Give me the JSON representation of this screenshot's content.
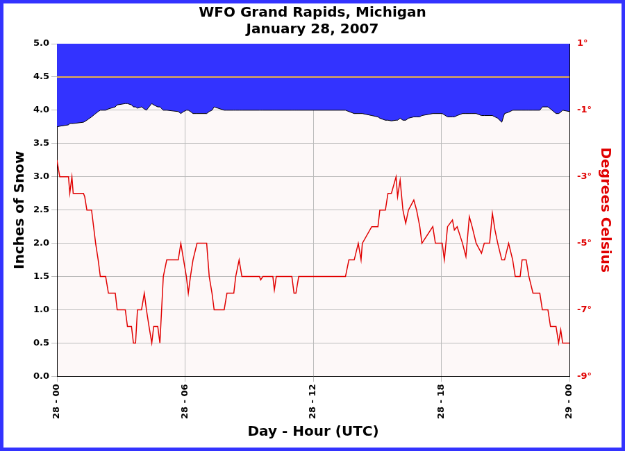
{
  "chart_data": {
    "type": "line",
    "title": "WFO Grand Rapids, Michigan",
    "subtitle": "January 28, 2007",
    "x_label": "Day - Hour (UTC)",
    "y_label": "Inches of Snow",
    "y2_label": "Degrees Celsius",
    "grid": true,
    "xlim": [
      0,
      24
    ],
    "xticks": [
      {
        "value": 0,
        "label": "28 - 00"
      },
      {
        "value": 6,
        "label": "28 - 06"
      },
      {
        "value": 12,
        "label": "28 - 12"
      },
      {
        "value": 18,
        "label": "28 - 18"
      },
      {
        "value": 24,
        "label": "29 - 00"
      }
    ],
    "ylim": [
      0,
      5
    ],
    "yticks": [
      {
        "value": 0,
        "label": "0.0"
      },
      {
        "value": 0.5,
        "label": "0.5"
      },
      {
        "value": 1,
        "label": "1.0"
      },
      {
        "value": 1.5,
        "label": "1.5"
      },
      {
        "value": 2,
        "label": "2.0"
      },
      {
        "value": 2.5,
        "label": "2.5"
      },
      {
        "value": 3,
        "label": "3.0"
      },
      {
        "value": 3.5,
        "label": "3.5"
      },
      {
        "value": 4,
        "label": "4.0"
      },
      {
        "value": 4.5,
        "label": "4.5"
      },
      {
        "value": 5,
        "label": "5.0"
      }
    ],
    "y2lim": [
      -9,
      1
    ],
    "y2ticks": [
      {
        "value": -9,
        "label": "-9°"
      },
      {
        "value": -7,
        "label": "-7°"
      },
      {
        "value": -5,
        "label": "-5°"
      },
      {
        "value": -3,
        "label": "-3°"
      },
      {
        "value": -1,
        "label": "-1°"
      },
      {
        "value": 1,
        "label": "1°"
      }
    ],
    "hlines": [
      {
        "value": 0,
        "axis": "y2",
        "color": "#e8b04a"
      }
    ],
    "x": [
      0,
      0.13,
      0.54,
      0.6,
      0.7,
      0.76,
      1.24,
      1.3,
      1.4,
      1.62,
      1.81,
      1.93,
      2.03,
      2.28,
      2.41,
      2.73,
      2.82,
      3.2,
      3.3,
      3.49,
      3.58,
      3.68,
      3.77,
      3.96,
      4.09,
      4.19,
      4.31,
      4.44,
      4.53,
      4.72,
      4.82,
      4.98,
      5.14,
      5.68,
      5.8,
      5.93,
      6.06,
      6.15,
      6.25,
      6.37,
      6.56,
      7.01,
      7.13,
      7.26,
      7.36,
      7.83,
      7.96,
      8.28,
      8.37,
      8.53,
      8.66,
      9.48,
      9.54,
      9.64,
      10.11,
      10.18,
      10.27,
      11.0,
      11.1,
      11.19,
      11.32,
      13.51,
      13.67,
      13.92,
      14.11,
      14.24,
      14.3,
      14.74,
      15.03,
      15.12,
      15.38,
      15.5,
      15.66,
      15.88,
      15.95,
      16.07,
      16.2,
      16.33,
      16.46,
      16.71,
      16.84,
      16.99,
      17.09,
      17.6,
      17.72,
      18.04,
      18.14,
      18.29,
      18.52,
      18.61,
      18.74,
      18.99,
      19.15,
      19.31,
      19.44,
      19.63,
      19.88,
      20.01,
      20.26,
      20.39,
      20.51,
      20.64,
      20.83,
      20.96,
      21.15,
      21.34,
      21.46,
      21.69,
      21.78,
      21.97,
      22.1,
      22.29,
      22.61,
      22.73,
      22.99,
      23.11,
      23.37,
      23.49,
      23.59,
      23.68,
      24
    ],
    "series": [
      {
        "axis": "y",
        "color": "#3333ff",
        "values": [
          3.75,
          3.76,
          3.78,
          3.8,
          3.8,
          3.8,
          3.82,
          3.83,
          3.85,
          3.9,
          3.95,
          3.98,
          4.0,
          4.0,
          4.02,
          4.05,
          4.08,
          4.1,
          4.1,
          4.08,
          4.05,
          4.05,
          4.03,
          4.05,
          4.02,
          4.0,
          4.05,
          4.1,
          4.08,
          4.05,
          4.05,
          4.0,
          4.0,
          3.98,
          3.95,
          3.98,
          4.0,
          4.0,
          3.98,
          3.95,
          3.95,
          3.95,
          3.98,
          4.0,
          4.05,
          4.0,
          4.0,
          4.0,
          4.0,
          4.0,
          4.0,
          4.0,
          4.0,
          4.0,
          4.0,
          4.0,
          4.0,
          4.0,
          4.0,
          4.0,
          4.0,
          4.0,
          3.98,
          3.95,
          3.95,
          3.95,
          3.95,
          3.92,
          3.9,
          3.88,
          3.85,
          3.85,
          3.84,
          3.85,
          3.85,
          3.88,
          3.85,
          3.85,
          3.88,
          3.9,
          3.9,
          3.9,
          3.92,
          3.95,
          3.95,
          3.95,
          3.93,
          3.9,
          3.9,
          3.9,
          3.92,
          3.95,
          3.95,
          3.95,
          3.95,
          3.95,
          3.92,
          3.92,
          3.92,
          3.92,
          3.9,
          3.88,
          3.82,
          3.95,
          3.97,
          4.0,
          4.0,
          4.0,
          4.0,
          4.0,
          4.0,
          4.0,
          4.0,
          4.05,
          4.05,
          4.02,
          3.95,
          3.95,
          3.97,
          4.0,
          3.98
        ]
      },
      {
        "axis": "y2",
        "color": "#e00000",
        "values": [
          -2.5,
          -3.0,
          -3.0,
          -3.5,
          -3.0,
          -3.5,
          -3.5,
          -3.6,
          -4.0,
          -4.0,
          -5.0,
          -5.5,
          -6.0,
          -6.0,
          -6.5,
          -6.5,
          -7.0,
          -7.0,
          -7.5,
          -7.5,
          -8.0,
          -8.0,
          -7.0,
          -7.0,
          -6.5,
          -7.0,
          -7.5,
          -8.0,
          -7.5,
          -7.5,
          -8.0,
          -6.0,
          -5.5,
          -5.5,
          -5.0,
          -5.5,
          -6.0,
          -6.5,
          -6.0,
          -5.5,
          -5.0,
          -5.0,
          -6.0,
          -6.5,
          -7.0,
          -7.0,
          -6.5,
          -6.5,
          -6.0,
          -5.5,
          -6.0,
          -6.0,
          -6.1,
          -6.0,
          -6.0,
          -6.4,
          -6.0,
          -6.0,
          -6.5,
          -6.5,
          -6.0,
          -6.0,
          -5.5,
          -5.5,
          -5.0,
          -5.5,
          -5.0,
          -4.5,
          -4.5,
          -4.0,
          -4.0,
          -3.5,
          -3.5,
          -3.0,
          -3.6,
          -3.1,
          -4.0,
          -4.4,
          -4.0,
          -3.7,
          -4.0,
          -4.5,
          -5.0,
          -4.5,
          -5.0,
          -5.0,
          -5.5,
          -4.5,
          -4.3,
          -4.6,
          -4.5,
          -5.0,
          -5.4,
          -4.2,
          -4.5,
          -5.0,
          -5.3,
          -5.0,
          -5.0,
          -4.1,
          -4.6,
          -5.0,
          -5.5,
          -5.5,
          -5.0,
          -5.5,
          -6.0,
          -6.0,
          -5.5,
          -5.5,
          -6.0,
          -6.5,
          -6.5,
          -7.0,
          -7.0,
          -7.5,
          -7.5,
          -8.0,
          -7.6,
          -8.0,
          -8.0
        ]
      }
    ]
  }
}
